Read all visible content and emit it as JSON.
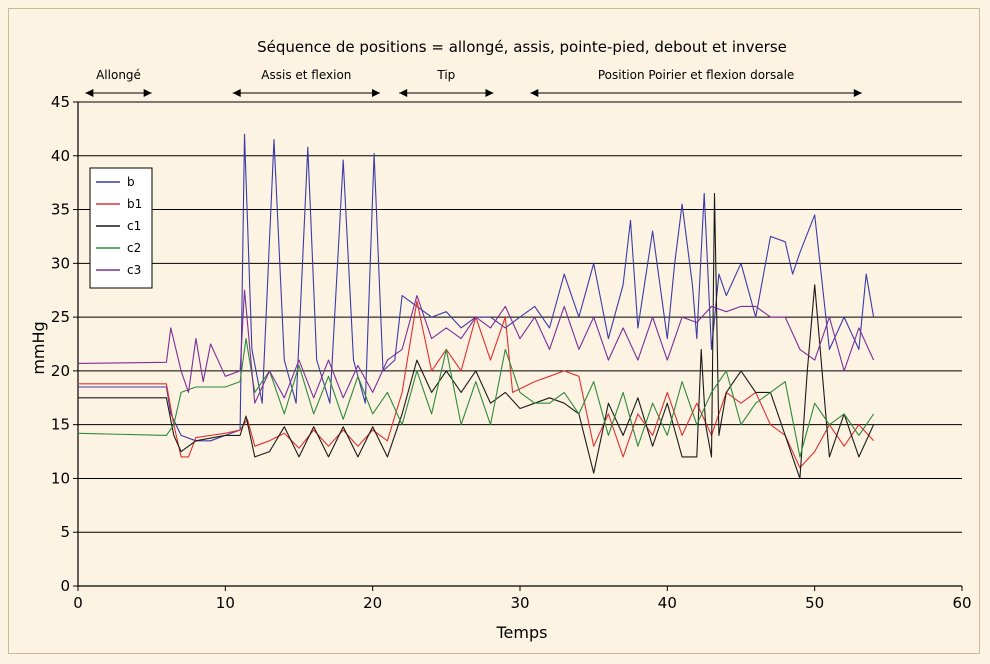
{
  "chart_data": {
    "type": "line",
    "title": "Séquence de positions = allongé, assis, pointe-pied, debout et inverse",
    "xlabel": "Temps",
    "ylabel": "mmHg",
    "xlim": [
      0,
      60
    ],
    "ylim": [
      0,
      45
    ],
    "xticks": [
      0,
      10,
      20,
      30,
      40,
      50,
      60
    ],
    "yticks": [
      0,
      5,
      10,
      15,
      20,
      25,
      30,
      35,
      40,
      45
    ],
    "grid": "horizontal",
    "legend_position": "left",
    "phases": [
      {
        "label": "Allongé",
        "x_start": 0.5,
        "x_end": 5
      },
      {
        "label": "Assis et flexion",
        "x_start": 10.5,
        "x_end": 20.5
      },
      {
        "label": "Tip",
        "x_start": 21.8,
        "x_end": 28.2
      },
      {
        "label": "Position Poirier et flexion dorsale",
        "x_start": 30.7,
        "x_end": 53.2
      }
    ],
    "series": [
      {
        "name": "b",
        "color": "#3b3ba8",
        "points": [
          [
            0,
            18.5
          ],
          [
            6,
            18.5
          ],
          [
            6.3,
            16
          ],
          [
            7,
            14
          ],
          [
            8,
            13.5
          ],
          [
            9,
            13.5
          ],
          [
            10,
            14
          ],
          [
            11,
            14.5
          ],
          [
            11.3,
            42
          ],
          [
            11.8,
            22
          ],
          [
            12.5,
            17
          ],
          [
            13.3,
            41.5
          ],
          [
            14,
            21
          ],
          [
            14.8,
            17
          ],
          [
            15.6,
            40.8
          ],
          [
            16.2,
            21
          ],
          [
            17.1,
            17
          ],
          [
            18,
            39.6
          ],
          [
            18.7,
            21
          ],
          [
            19.5,
            17
          ],
          [
            20.1,
            40.2
          ],
          [
            20.7,
            20
          ],
          [
            21.5,
            21
          ],
          [
            22,
            27
          ],
          [
            23,
            26
          ],
          [
            24,
            25
          ],
          [
            25,
            25.5
          ],
          [
            26,
            24
          ],
          [
            27,
            25
          ],
          [
            28,
            25
          ],
          [
            29,
            24
          ],
          [
            30,
            25
          ],
          [
            31,
            26
          ],
          [
            32,
            24
          ],
          [
            33,
            29
          ],
          [
            34,
            25
          ],
          [
            35,
            30
          ],
          [
            36,
            23
          ],
          [
            37,
            28
          ],
          [
            37.5,
            34
          ],
          [
            38,
            24
          ],
          [
            39,
            33
          ],
          [
            40,
            23
          ],
          [
            40.5,
            30
          ],
          [
            41,
            35.5
          ],
          [
            41.7,
            28
          ],
          [
            42,
            23
          ],
          [
            42.5,
            36.5
          ],
          [
            43,
            22
          ],
          [
            43.5,
            29
          ],
          [
            44,
            27
          ],
          [
            45,
            30
          ],
          [
            46,
            25
          ],
          [
            47,
            32.5
          ],
          [
            48,
            32
          ],
          [
            48.5,
            29
          ],
          [
            49,
            31
          ],
          [
            50,
            34.5
          ],
          [
            51,
            22
          ],
          [
            52,
            25
          ],
          [
            53,
            22
          ],
          [
            53.5,
            29
          ],
          [
            54,
            25
          ]
        ]
      },
      {
        "name": "b1",
        "color": "#e03030",
        "points": [
          [
            0,
            18.8
          ],
          [
            6,
            18.8
          ],
          [
            6.5,
            15
          ],
          [
            7,
            12
          ],
          [
            7.5,
            12
          ],
          [
            8,
            13.8
          ],
          [
            10,
            14.2
          ],
          [
            11,
            14.5
          ],
          [
            11.5,
            15.5
          ],
          [
            12,
            13
          ],
          [
            13,
            13.5
          ],
          [
            14,
            14.2
          ],
          [
            15,
            12.8
          ],
          [
            16,
            14.5
          ],
          [
            17,
            13
          ],
          [
            18,
            14.5
          ],
          [
            19,
            13
          ],
          [
            20,
            14.5
          ],
          [
            21,
            13.5
          ],
          [
            22,
            18
          ],
          [
            23,
            26.5
          ],
          [
            24,
            20
          ],
          [
            25,
            22
          ],
          [
            26,
            20
          ],
          [
            27,
            25
          ],
          [
            28,
            21
          ],
          [
            29,
            25
          ],
          [
            29.5,
            18
          ],
          [
            31,
            19
          ],
          [
            32,
            19.5
          ],
          [
            33,
            20
          ],
          [
            34,
            19.5
          ],
          [
            35,
            13
          ],
          [
            36,
            16
          ],
          [
            37,
            12
          ],
          [
            38,
            16
          ],
          [
            39,
            14
          ],
          [
            40,
            18
          ],
          [
            41,
            14
          ],
          [
            42,
            17
          ],
          [
            43,
            14
          ],
          [
            44,
            18
          ],
          [
            45,
            17
          ],
          [
            46,
            18
          ],
          [
            47,
            15
          ],
          [
            48,
            14
          ],
          [
            49,
            11
          ],
          [
            50,
            12.5
          ],
          [
            51,
            15
          ],
          [
            52,
            13
          ],
          [
            53,
            15
          ],
          [
            54,
            13.5
          ]
        ]
      },
      {
        "name": "c1",
        "color": "#1a1a1a",
        "points": [
          [
            0,
            17.5
          ],
          [
            6,
            17.5
          ],
          [
            6.5,
            14
          ],
          [
            7,
            12.5
          ],
          [
            8,
            13.5
          ],
          [
            10,
            14
          ],
          [
            11,
            14
          ],
          [
            11.4,
            15.8
          ],
          [
            12,
            12
          ],
          [
            13,
            12.5
          ],
          [
            14,
            14.8
          ],
          [
            15,
            12
          ],
          [
            16,
            14.8
          ],
          [
            17,
            12
          ],
          [
            18,
            14.8
          ],
          [
            19,
            12
          ],
          [
            20,
            14.8
          ],
          [
            21,
            12
          ],
          [
            22,
            16
          ],
          [
            23,
            21
          ],
          [
            24,
            18
          ],
          [
            25,
            20
          ],
          [
            26,
            18
          ],
          [
            27,
            20
          ],
          [
            28,
            17
          ],
          [
            29,
            18
          ],
          [
            30,
            16.5
          ],
          [
            31,
            17
          ],
          [
            32,
            17.5
          ],
          [
            33,
            17
          ],
          [
            34,
            16
          ],
          [
            35,
            10.5
          ],
          [
            36,
            17
          ],
          [
            37,
            14
          ],
          [
            38,
            17.5
          ],
          [
            39,
            13
          ],
          [
            40,
            17
          ],
          [
            41,
            12
          ],
          [
            42,
            12
          ],
          [
            42.3,
            22
          ],
          [
            42.6,
            15
          ],
          [
            43,
            12
          ],
          [
            43.2,
            36.5
          ],
          [
            43.5,
            14
          ],
          [
            44,
            18
          ],
          [
            45,
            20
          ],
          [
            46,
            18
          ],
          [
            47,
            18
          ],
          [
            48,
            14
          ],
          [
            49,
            10
          ],
          [
            49.5,
            20
          ],
          [
            50,
            28
          ],
          [
            51,
            12
          ],
          [
            52,
            16
          ],
          [
            53,
            12
          ],
          [
            54,
            15
          ]
        ]
      },
      {
        "name": "c2",
        "color": "#2e8a3a",
        "points": [
          [
            0,
            14.2
          ],
          [
            6,
            14
          ],
          [
            6.5,
            15
          ],
          [
            7,
            18
          ],
          [
            8,
            18.5
          ],
          [
            10,
            18.5
          ],
          [
            11,
            19
          ],
          [
            11.4,
            23
          ],
          [
            12,
            18
          ],
          [
            13,
            20
          ],
          [
            14,
            16
          ],
          [
            15,
            20.5
          ],
          [
            16,
            16
          ],
          [
            17,
            19.5
          ],
          [
            18,
            15.5
          ],
          [
            19,
            19.5
          ],
          [
            20,
            16
          ],
          [
            21,
            18
          ],
          [
            22,
            15
          ],
          [
            23,
            20
          ],
          [
            24,
            16
          ],
          [
            25,
            22
          ],
          [
            26,
            15
          ],
          [
            27,
            19
          ],
          [
            28,
            15
          ],
          [
            29,
            22
          ],
          [
            30,
            18
          ],
          [
            31,
            17
          ],
          [
            32,
            17
          ],
          [
            33,
            18
          ],
          [
            34,
            16
          ],
          [
            35,
            19
          ],
          [
            36,
            14
          ],
          [
            37,
            18
          ],
          [
            38,
            13
          ],
          [
            39,
            17
          ],
          [
            40,
            14
          ],
          [
            41,
            19
          ],
          [
            42,
            15
          ],
          [
            43,
            18
          ],
          [
            44,
            20
          ],
          [
            45,
            15
          ],
          [
            46,
            17
          ],
          [
            47,
            18
          ],
          [
            48,
            19
          ],
          [
            49,
            12
          ],
          [
            50,
            17
          ],
          [
            51,
            15
          ],
          [
            52,
            16
          ],
          [
            53,
            14
          ],
          [
            54,
            16
          ]
        ]
      },
      {
        "name": "c3",
        "color": "#7b2e9a",
        "points": [
          [
            0,
            20.7
          ],
          [
            6,
            20.8
          ],
          [
            6.3,
            24
          ],
          [
            7,
            20
          ],
          [
            7.5,
            18
          ],
          [
            8,
            23
          ],
          [
            8.5,
            19
          ],
          [
            9,
            22.5
          ],
          [
            10,
            19.5
          ],
          [
            11,
            20
          ],
          [
            11.3,
            27.5
          ],
          [
            12,
            17
          ],
          [
            13,
            20
          ],
          [
            14,
            17.5
          ],
          [
            15,
            21
          ],
          [
            16,
            17.5
          ],
          [
            17,
            21
          ],
          [
            18,
            17.5
          ],
          [
            19,
            20.5
          ],
          [
            20,
            18
          ],
          [
            21,
            21
          ],
          [
            22,
            22
          ],
          [
            23,
            27
          ],
          [
            24,
            23
          ],
          [
            25,
            24
          ],
          [
            26,
            23
          ],
          [
            27,
            25
          ],
          [
            28,
            24
          ],
          [
            29,
            26
          ],
          [
            30,
            23
          ],
          [
            31,
            25
          ],
          [
            32,
            22
          ],
          [
            33,
            26
          ],
          [
            34,
            22
          ],
          [
            35,
            25
          ],
          [
            36,
            21
          ],
          [
            37,
            24
          ],
          [
            38,
            21
          ],
          [
            39,
            25
          ],
          [
            40,
            21
          ],
          [
            41,
            25
          ],
          [
            42,
            24.5
          ],
          [
            43,
            26
          ],
          [
            44,
            25.5
          ],
          [
            45,
            26
          ],
          [
            46,
            26
          ],
          [
            47,
            25
          ],
          [
            48,
            25
          ],
          [
            49,
            22
          ],
          [
            50,
            21
          ],
          [
            51,
            25
          ],
          [
            52,
            20
          ],
          [
            53,
            24
          ],
          [
            54,
            21
          ]
        ]
      }
    ]
  }
}
